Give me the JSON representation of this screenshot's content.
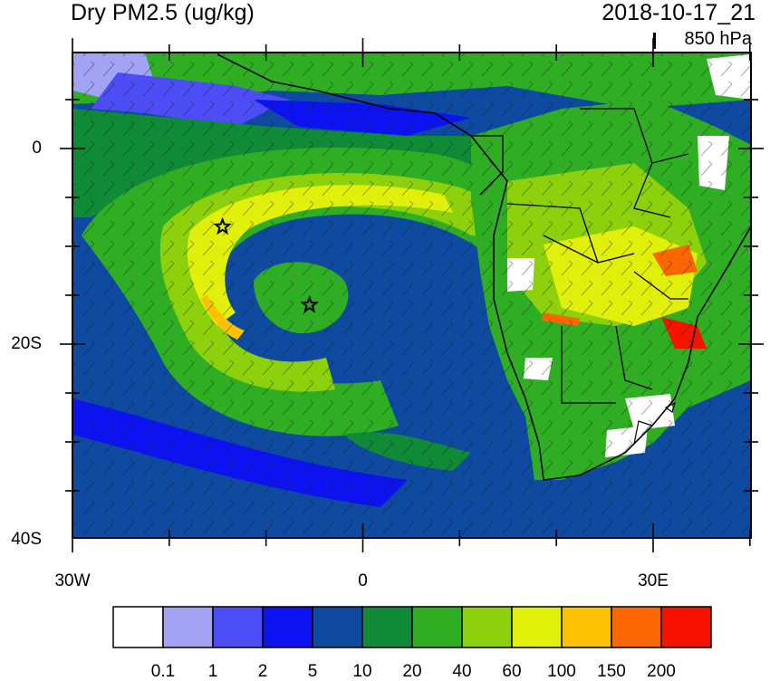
{
  "title": {
    "field": "Dry PM2.5 (ug/kg)",
    "datetime": "2018-10-17_21",
    "level": "850 hPa"
  },
  "axes": {
    "x_ticks": [
      {
        "label": "30W",
        "lon": -30
      },
      {
        "label": "0",
        "lon": 0
      },
      {
        "label": "30E",
        "lon": 30
      }
    ],
    "y_ticks": [
      {
        "label": "0",
        "lat": 0
      },
      {
        "label": "20S",
        "lat": -20
      },
      {
        "label": "40S",
        "lat": -40
      }
    ],
    "lon_range": [
      -30,
      40
    ],
    "lat_range": [
      -40,
      10
    ]
  },
  "markers": [
    {
      "name": "star",
      "lon": -14.5,
      "lat": -8
    },
    {
      "name": "star",
      "lon": -5.5,
      "lat": -16
    }
  ],
  "colorbar": {
    "colors": [
      "#ffffff",
      "#a3a3f5",
      "#4d4df5",
      "#0d13f0",
      "#0e4aa0",
      "#0f8a36",
      "#2fae23",
      "#8cd10c",
      "#e0f00a",
      "#fcc100",
      "#fc6600",
      "#f71300"
    ],
    "labels": [
      "0.1",
      "1",
      "2",
      "5",
      "10",
      "20",
      "40",
      "60",
      "100",
      "150",
      "200"
    ]
  },
  "icons": {
    "marker": "star-icon"
  }
}
